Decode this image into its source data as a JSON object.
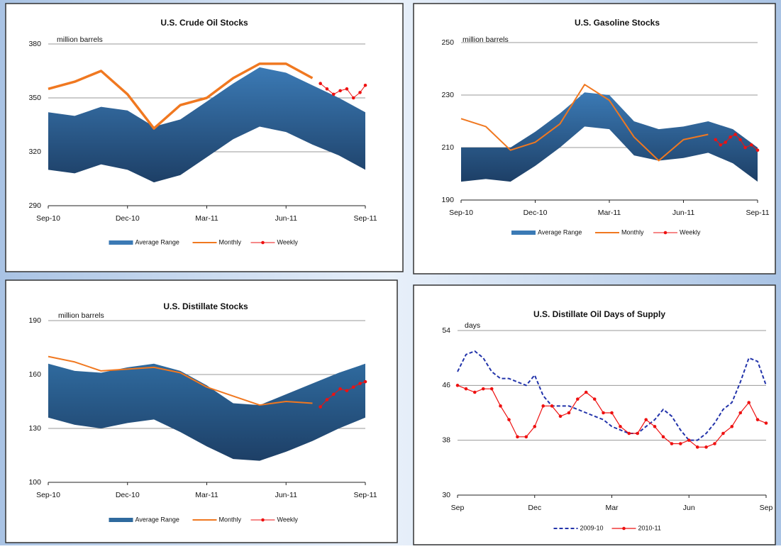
{
  "chart_data": [
    {
      "type": "line",
      "title": "U.S. Crude Oil Stocks",
      "y_label": "million barrels",
      "ylim": [
        290,
        380
      ],
      "yticks": [
        290,
        320,
        350,
        380
      ],
      "grid": true,
      "xlim": [
        0,
        12
      ],
      "xticks": [
        {
          "value": 0,
          "label": "Sep-10"
        },
        {
          "value": 3,
          "label": "Dec-10"
        },
        {
          "value": 6,
          "label": "Mar-11"
        },
        {
          "value": 9,
          "label": "Jun-11"
        },
        {
          "value": 12,
          "label": "Sep-11"
        }
      ],
      "series": [
        {
          "name": "Average Range",
          "color": "#3b7ab5",
          "x": [
            0,
            1,
            2,
            3,
            4,
            5,
            6,
            7,
            8,
            9,
            10,
            11,
            12
          ],
          "high": [
            342,
            340,
            345,
            343,
            334,
            338,
            348,
            358,
            367,
            364,
            357,
            350,
            342
          ],
          "low": [
            310,
            308,
            313,
            310,
            303,
            307,
            317,
            327,
            334,
            331,
            324,
            318,
            310
          ]
        },
        {
          "name": "Monthly",
          "color": "#f07820",
          "line_width": 3.5,
          "x": [
            0,
            1,
            2,
            3,
            4,
            5,
            6,
            7,
            8,
            9,
            10
          ],
          "values": [
            355,
            359,
            365,
            352,
            333,
            346,
            350,
            361,
            369,
            369,
            361
          ]
        },
        {
          "name": "Weekly",
          "color": "#ee1111",
          "line_width": 1,
          "markers": true,
          "x": [
            10.3,
            10.55,
            10.8,
            11.05,
            11.3,
            11.55,
            11.8,
            12
          ],
          "values": [
            358,
            355,
            352,
            354,
            355,
            350,
            353,
            357
          ]
        }
      ]
    },
    {
      "type": "line",
      "title": "U.S. Gasoline Stocks",
      "y_label": "million barrels",
      "ylim": [
        190,
        250
      ],
      "yticks": [
        190,
        210,
        230,
        250
      ],
      "grid": true,
      "xlim": [
        0,
        12
      ],
      "xticks": [
        {
          "value": 0,
          "label": "Sep-10"
        },
        {
          "value": 3,
          "label": "Dec-10"
        },
        {
          "value": 6,
          "label": "Mar-11"
        },
        {
          "value": 9,
          "label": "Jun-11"
        },
        {
          "value": 12,
          "label": "Sep-11"
        }
      ],
      "series": [
        {
          "name": "Average Range",
          "color": "#3b7ab5",
          "x": [
            0,
            1,
            2,
            3,
            4,
            5,
            6,
            7,
            8,
            9,
            10,
            11,
            12
          ],
          "high": [
            210,
            210,
            210,
            216,
            223,
            231,
            230,
            220,
            217,
            218,
            220,
            217,
            210
          ],
          "low": [
            197,
            198,
            197,
            203,
            210,
            218,
            217,
            207,
            205,
            206,
            208,
            204,
            197
          ]
        },
        {
          "name": "Monthly",
          "color": "#f07820",
          "line_width": 2,
          "x": [
            0,
            1,
            2,
            3,
            4,
            5,
            6,
            7,
            8,
            9,
            10
          ],
          "values": [
            221,
            218,
            209,
            212,
            219,
            234,
            228,
            214,
            205,
            213,
            215
          ]
        },
        {
          "name": "Weekly",
          "color": "#ee1111",
          "line_width": 1,
          "markers": true,
          "x": [
            10.3,
            10.5,
            10.7,
            10.9,
            11.1,
            11.3,
            11.5,
            11.75,
            12
          ],
          "values": [
            213,
            211,
            212,
            214,
            215,
            213,
            210,
            211,
            209
          ]
        }
      ]
    },
    {
      "type": "line",
      "title": "U.S. Distillate Stocks",
      "y_label": "million barrels",
      "ylim": [
        100,
        190
      ],
      "yticks": [
        100,
        130,
        160,
        190
      ],
      "grid": true,
      "xlim": [
        0,
        12
      ],
      "xticks": [
        {
          "value": 0,
          "label": "Sep-10"
        },
        {
          "value": 3,
          "label": "Dec-10"
        },
        {
          "value": 6,
          "label": "Mar-11"
        },
        {
          "value": 9,
          "label": "Jun-11"
        },
        {
          "value": 12,
          "label": "Sep-11"
        }
      ],
      "series": [
        {
          "name": "Average Range",
          "color": "#2f6a9e",
          "x": [
            0,
            1,
            2,
            3,
            4,
            5,
            6,
            7,
            8,
            9,
            10,
            11,
            12
          ],
          "high": [
            166,
            162,
            161,
            164,
            166,
            162,
            154,
            144,
            143,
            149,
            155,
            161,
            166
          ],
          "low": [
            136,
            132,
            130,
            133,
            135,
            128,
            120,
            113,
            112,
            117,
            123,
            130,
            136
          ]
        },
        {
          "name": "Monthly",
          "color": "#f07820",
          "line_width": 2,
          "x": [
            0,
            1,
            2,
            3,
            4,
            5,
            6,
            7,
            8,
            9,
            10
          ],
          "values": [
            170,
            167,
            162,
            163,
            164,
            161,
            153,
            148,
            143,
            145,
            144
          ]
        },
        {
          "name": "Weekly",
          "color": "#ee1111",
          "line_width": 1,
          "markers": true,
          "x": [
            10.3,
            10.55,
            10.8,
            11.05,
            11.3,
            11.55,
            11.8,
            12
          ],
          "values": [
            142,
            146,
            149,
            152,
            151,
            153,
            155,
            156
          ]
        }
      ]
    },
    {
      "type": "line",
      "title": "U.S. Distillate Oil Days  of Supply",
      "y_label": "days",
      "ylim": [
        30,
        54
      ],
      "yticks": [
        30,
        38,
        46,
        54
      ],
      "grid": true,
      "xlim": [
        0,
        12
      ],
      "xticks": [
        {
          "value": 0,
          "label": "Sep"
        },
        {
          "value": 3,
          "label": "Dec"
        },
        {
          "value": 6,
          "label": "Mar"
        },
        {
          "value": 9,
          "label": "Jun"
        },
        {
          "value": 12,
          "label": "Sep"
        }
      ],
      "series": [
        {
          "name": "2009-10",
          "color": "#2233aa",
          "line_width": 2,
          "dashed": true,
          "x": [
            0,
            0.33,
            0.67,
            1,
            1.33,
            1.67,
            2,
            2.33,
            2.67,
            3,
            3.33,
            3.67,
            4,
            4.33,
            4.67,
            5,
            5.33,
            5.67,
            6,
            6.33,
            6.67,
            7,
            7.33,
            7.67,
            8,
            8.33,
            8.67,
            9,
            9.33,
            9.67,
            10,
            10.33,
            10.67,
            11,
            11.33,
            11.67,
            12
          ],
          "values": [
            48,
            50.5,
            51,
            50,
            48,
            47,
            47,
            46.5,
            46,
            47.5,
            44.5,
            43,
            43,
            43,
            42.5,
            42,
            41.5,
            41,
            40,
            39.5,
            39,
            39,
            40,
            41,
            42.5,
            41.5,
            39.5,
            38,
            38,
            39,
            40.5,
            42.5,
            43.5,
            46.5,
            50,
            49.5,
            46
          ]
        },
        {
          "name": "2010-11",
          "color": "#ee1111",
          "line_width": 1.2,
          "markers": true,
          "x": [
            0,
            0.33,
            0.67,
            1,
            1.33,
            1.67,
            2,
            2.33,
            2.67,
            3,
            3.33,
            3.67,
            4,
            4.33,
            4.67,
            5,
            5.33,
            5.67,
            6,
            6.33,
            6.67,
            7,
            7.33,
            7.67,
            8,
            8.33,
            8.67,
            9,
            9.33,
            9.67,
            10,
            10.33,
            10.67,
            11,
            11.33,
            11.67,
            12
          ],
          "values": [
            46,
            45.5,
            45,
            45.5,
            45.5,
            43,
            41,
            38.5,
            38.5,
            40,
            43,
            43,
            41.5,
            42,
            44,
            45,
            44,
            42,
            42,
            40,
            39,
            39,
            41,
            40,
            38.5,
            37.5,
            37.5,
            38,
            37,
            37,
            37.5,
            39,
            40,
            42,
            43.5,
            41,
            40.5
          ]
        }
      ]
    }
  ]
}
